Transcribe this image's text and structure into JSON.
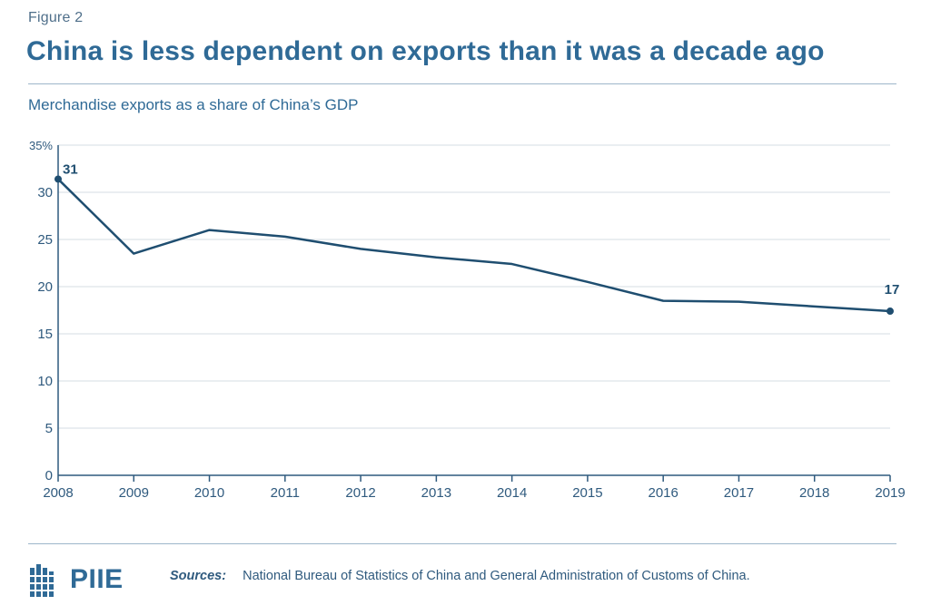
{
  "figure_label": "Figure 2",
  "title": "China is less dependent on exports than it was a decade ago",
  "subtitle": "Merchandise exports as a share of China’s GDP",
  "footer": {
    "logo_text": "PIIE",
    "sources_label": "Sources:",
    "sources_text": "National Bureau of Statistics of China and General Administration of Customs of China."
  },
  "colors": {
    "line": "#1f4e70",
    "grid": "#d6dde3",
    "axis": "#2f5a7e",
    "title": "#2f6a96"
  },
  "chart_data": {
    "type": "line",
    "title": "",
    "xlabel": "",
    "ylabel": "",
    "x": [
      "2008",
      "2009",
      "2010",
      "2011",
      "2012",
      "2013",
      "2014",
      "2015",
      "2016",
      "2017",
      "2018",
      "2019"
    ],
    "ylim": [
      0,
      35
    ],
    "yticks": [
      0,
      5,
      10,
      15,
      20,
      25,
      30,
      35
    ],
    "ytick_labels": [
      "0",
      "5",
      "10",
      "15",
      "20",
      "25",
      "30",
      "35%"
    ],
    "grid": true,
    "series": [
      {
        "values": [
          31.4,
          23.5,
          26.0,
          25.3,
          24.0,
          23.1,
          22.4,
          20.5,
          18.5,
          18.4,
          17.9,
          17.4
        ]
      }
    ],
    "annotations": [
      {
        "x": "2008",
        "label": "31"
      },
      {
        "x": "2019",
        "label": "17"
      }
    ]
  }
}
